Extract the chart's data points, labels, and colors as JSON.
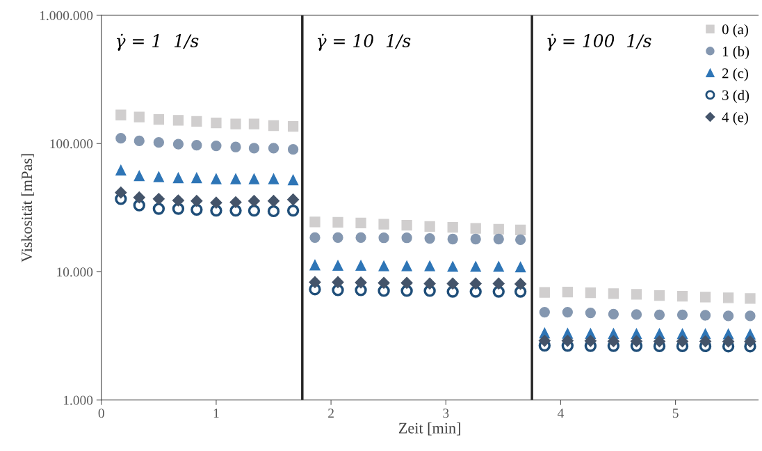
{
  "chart_data": {
    "type": "scatter",
    "xlabel": "Zeit [min]",
    "ylabel": "Viskosität [mPas]",
    "log": "y",
    "grid": false,
    "legend": "top right",
    "xlim": [
      0,
      5.72
    ],
    "xticks": [
      0,
      1,
      2,
      3,
      4,
      5
    ],
    "ylim": [
      1000,
      1000000
    ],
    "yticks": [
      {
        "value": 1000,
        "label": "1.000"
      },
      {
        "value": 10000,
        "label": "10.000"
      },
      {
        "value": 100000,
        "label": "100.000"
      },
      {
        "value": 1000000,
        "label": "1.000.000"
      }
    ],
    "x": [
      0.17,
      0.33,
      0.5,
      0.67,
      0.83,
      1.0,
      1.17,
      1.33,
      1.5,
      1.67,
      1.86,
      2.06,
      2.26,
      2.46,
      2.66,
      2.86,
      3.06,
      3.26,
      3.46,
      3.65,
      3.86,
      4.06,
      4.26,
      4.46,
      4.66,
      4.86,
      5.06,
      5.26,
      5.46,
      5.65
    ],
    "series": [
      {
        "name": "0 (a)",
        "color": "#d0cece",
        "marker": "square",
        "values": [
          167000,
          161000,
          154000,
          152000,
          149000,
          145000,
          142000,
          142000,
          138000,
          136000,
          24500,
          24300,
          24000,
          23500,
          23100,
          22600,
          22200,
          21800,
          21500,
          21200,
          6900,
          6960,
          6870,
          6760,
          6670,
          6530,
          6450,
          6350,
          6270,
          6190
        ]
      },
      {
        "name": "1 (b)",
        "color": "#8497b0",
        "marker": "circle",
        "values": [
          110000,
          105000,
          102000,
          99000,
          97000,
          96000,
          94000,
          92000,
          92000,
          90000,
          18500,
          18500,
          18500,
          18400,
          18400,
          18200,
          18000,
          18000,
          18000,
          17800,
          4840,
          4840,
          4780,
          4680,
          4640,
          4620,
          4620,
          4580,
          4530,
          4530
        ]
      },
      {
        "name": "2 (c)",
        "color": "#2e75b6",
        "marker": "triangle",
        "values": [
          62000,
          56000,
          55000,
          54000,
          54000,
          53000,
          53000,
          53000,
          53000,
          52000,
          11300,
          11200,
          11200,
          11100,
          11100,
          11100,
          11000,
          11000,
          11000,
          10900,
          3330,
          3310,
          3300,
          3300,
          3290,
          3290,
          3280,
          3280,
          3270,
          3260
        ]
      },
      {
        "name": "3 (d)",
        "color": "#1f4e79",
        "marker": "circle",
        "values": [
          37000,
          33000,
          31000,
          31000,
          30500,
          30000,
          30000,
          30000,
          29700,
          30000,
          7300,
          7200,
          7200,
          7100,
          7100,
          7100,
          7000,
          7000,
          7000,
          7000,
          2660,
          2650,
          2640,
          2640,
          2640,
          2630,
          2630,
          2630,
          2620,
          2620
        ]
      },
      {
        "name": "4 (e)",
        "color": "#44546a",
        "marker": "diamond",
        "values": [
          41500,
          38000,
          37000,
          36000,
          35700,
          34600,
          34900,
          35700,
          35700,
          36600,
          8300,
          8300,
          8250,
          8200,
          8200,
          8100,
          8100,
          8100,
          8100,
          8050,
          2900,
          2900,
          2890,
          2880,
          2880,
          2870,
          2870,
          2870,
          2860,
          2860
        ]
      }
    ],
    "ref_lines": [
      {
        "axis": "x",
        "value": 1.75,
        "color": "#262626"
      },
      {
        "axis": "x",
        "value": 3.75,
        "color": "#262626"
      }
    ],
    "annotations": [
      "γ̇ = 1  1/s",
      "γ̇ = 10  1/s",
      "γ̇ = 100  1/s"
    ]
  }
}
